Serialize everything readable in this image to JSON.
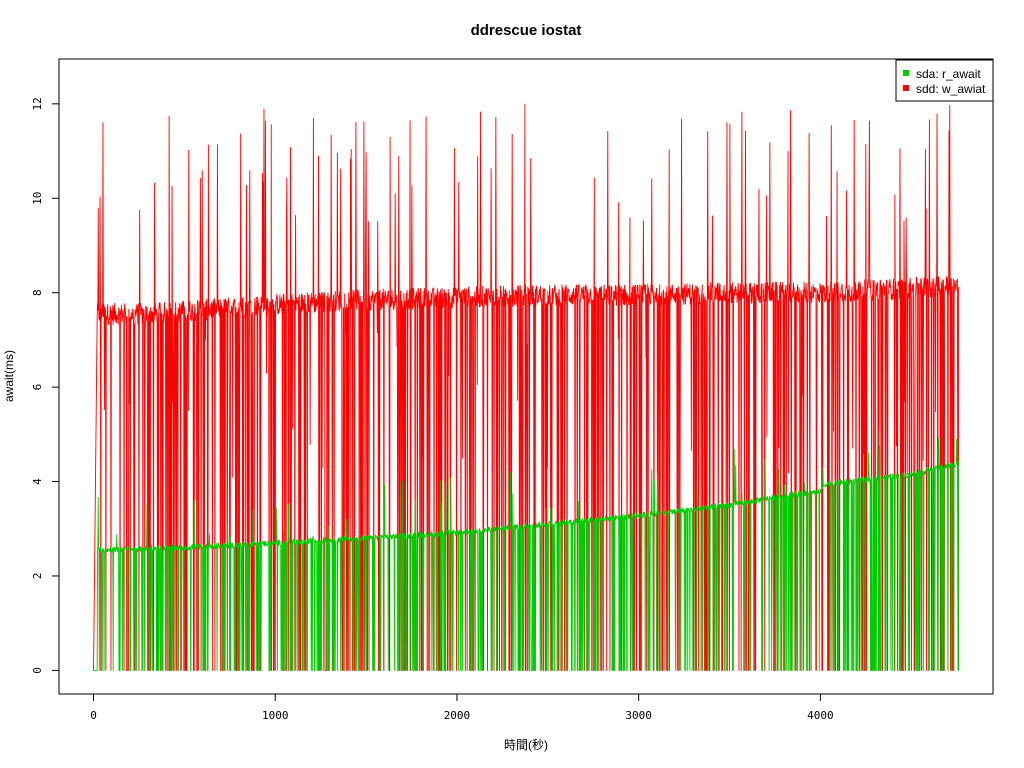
{
  "chart_data": {
    "type": "line",
    "title": "ddrescue iostat",
    "xlabel": "時間(秒)",
    "ylabel": "await(ms)",
    "xlim": [
      -190,
      4950
    ],
    "ylim": [
      -0.5,
      12.95
    ],
    "x_ticks": [
      0,
      1000,
      2000,
      3000,
      4000
    ],
    "y_ticks": [
      0,
      2,
      4,
      6,
      8,
      10,
      12
    ],
    "x_tick_labels": [
      "0",
      "1000",
      "2000",
      "3000",
      "4000"
    ],
    "y_tick_labels": [
      "0",
      "2",
      "4",
      "6",
      "8",
      "10",
      "12"
    ],
    "legend_position": "top-right",
    "grid": false,
    "sample_count": 4760,
    "series": [
      {
        "name": "sda: r_await",
        "color": "#00cc00",
        "baseline_trend": [
          [
            20,
            2.55
          ],
          [
            500,
            2.6
          ],
          [
            1000,
            2.7
          ],
          [
            1500,
            2.8
          ],
          [
            2000,
            2.92
          ],
          [
            2500,
            3.1
          ],
          [
            3000,
            3.28
          ],
          [
            3500,
            3.5
          ],
          [
            3800,
            3.7
          ],
          [
            4000,
            3.8
          ],
          [
            4030,
            3.95
          ],
          [
            4500,
            4.15
          ],
          [
            4760,
            4.38
          ]
        ],
        "dropout_to_zero": true
      },
      {
        "name": "sdd: w_awiat",
        "color": "#ff0000",
        "baseline_trend": [
          [
            20,
            7.55
          ],
          [
            300,
            7.55
          ],
          [
            1000,
            7.75
          ],
          [
            1500,
            7.85
          ],
          [
            2000,
            7.9
          ],
          [
            2500,
            7.95
          ],
          [
            3000,
            7.95
          ],
          [
            3500,
            8.0
          ],
          [
            4000,
            8.0
          ],
          [
            4500,
            8.1
          ],
          [
            4760,
            8.15
          ]
        ],
        "spike_peak_typical": 12.0,
        "dropout_to_zero": true
      }
    ]
  }
}
